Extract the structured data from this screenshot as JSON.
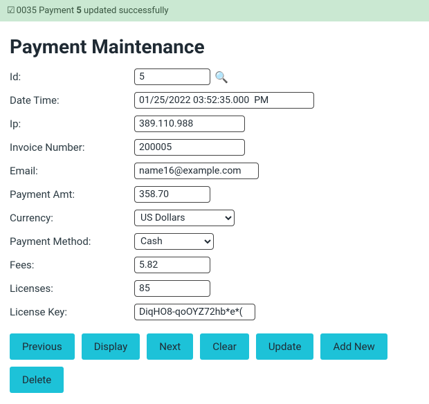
{
  "alert": {
    "prefix": "0035 Payment ",
    "bold": "5",
    "suffix": " updated successfully"
  },
  "title": "Payment Maintenance",
  "labels": {
    "id": "Id:",
    "dateTime": "Date Time:",
    "ip": "Ip:",
    "invoice": "Invoice Number:",
    "email": "Email:",
    "amount": "Payment Amt:",
    "currency": "Currency:",
    "method": "Payment Method:",
    "fees": "Fees:",
    "licenses": "Licenses:",
    "licenseKey": "License Key:"
  },
  "values": {
    "id": "5",
    "dateTime": "01/25/2022 03:52:35.000  PM",
    "ip": "389.110.988",
    "invoice": "200005",
    "email": "name16@example.com",
    "amount": "358.70",
    "currency": "US Dollars",
    "method": "Cash",
    "fees": "5.82",
    "licenses": "85",
    "licenseKey": "DiqHO8-qoOYZ72hb*e*("
  },
  "buttons": {
    "previous": "Previous",
    "display": "Display",
    "next": "Next",
    "clear": "Clear",
    "update": "Update",
    "addNew": "Add New",
    "delete": "Delete"
  },
  "colors": {
    "alertBg": "#cae8d2",
    "alertText": "#3a5742",
    "buttonBg": "#1dc2d8",
    "text": "#1f2a33",
    "border": "#444444",
    "background": "#ffffff"
  }
}
